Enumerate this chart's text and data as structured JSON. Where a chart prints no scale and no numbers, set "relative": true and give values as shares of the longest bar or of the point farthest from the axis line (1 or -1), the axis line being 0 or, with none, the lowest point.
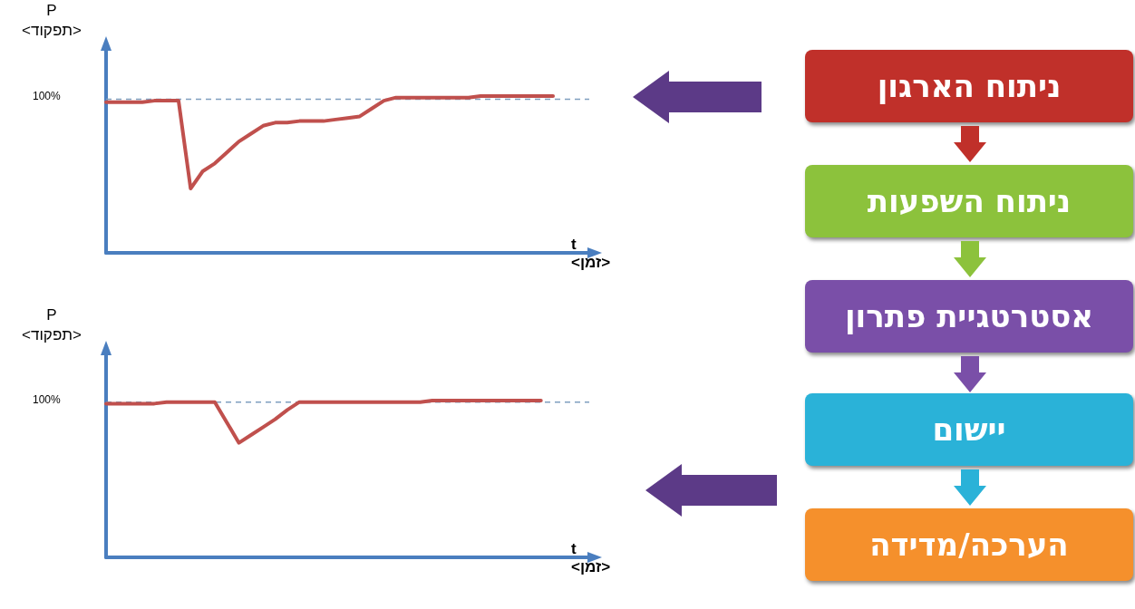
{
  "chart_data": [
    {
      "type": "line",
      "ylabel": "P <תפקוד>",
      "xlabel": "t <זמן>",
      "relative": true,
      "tick_labels": false,
      "line_style": "solid",
      "annotations": [
        "100%"
      ],
      "categories": [
        null,
        null,
        null,
        null,
        null,
        null,
        null,
        null,
        null,
        null,
        null,
        null,
        null,
        null,
        null,
        null,
        null,
        null,
        null,
        null,
        null,
        null,
        null,
        null,
        null,
        null,
        null,
        null,
        null,
        null,
        null,
        null,
        null,
        null,
        null,
        null,
        null,
        null,
        null,
        null,
        null
      ],
      "series": [
        {
          "color": "#c0504d",
          "values": [
            0.96,
            0.96,
            0.96,
            0.96,
            0.97,
            0.97,
            0.97,
            0.41,
            0.52,
            0.57,
            0.64,
            0.71,
            0.76,
            0.81,
            0.83,
            0.83,
            0.84,
            0.84,
            0.84,
            0.85,
            0.86,
            0.87,
            0.92,
            0.97,
            0.99,
            0.99,
            0.99,
            0.99,
            0.99,
            0.99,
            0.99,
            1,
            1,
            1,
            1,
            1,
            1,
            1,
            null,
            null,
            null
          ]
        }
      ],
      "ref_lines": [
        {
          "axis": "y",
          "value": 0.98,
          "color": "#7f9fbf",
          "line_style": "dashed"
        }
      ]
    },
    {
      "type": "line",
      "ylabel": "P <תפקוד>",
      "xlabel": "t <זמן>",
      "relative": true,
      "tick_labels": false,
      "line_style": "solid",
      "annotations": [
        "100%"
      ],
      "categories": [
        null,
        null,
        null,
        null,
        null,
        null,
        null,
        null,
        null,
        null,
        null,
        null,
        null,
        null,
        null,
        null,
        null,
        null,
        null,
        null,
        null,
        null,
        null,
        null,
        null,
        null,
        null,
        null,
        null,
        null,
        null,
        null,
        null,
        null,
        null,
        null,
        null,
        null,
        null,
        null,
        null
      ],
      "series": [
        {
          "color": "#c0504d",
          "values": [
            0.98,
            0.98,
            0.98,
            0.98,
            0.98,
            0.99,
            0.99,
            0.99,
            0.99,
            0.99,
            0.86,
            0.73,
            0.78,
            0.83,
            0.88,
            0.94,
            0.99,
            0.99,
            0.99,
            0.99,
            0.99,
            0.99,
            0.99,
            0.99,
            0.99,
            0.99,
            0.99,
            1,
            1,
            1,
            1,
            1,
            1,
            1,
            1,
            1,
            1,
            null,
            null,
            null,
            null
          ]
        }
      ],
      "ref_lines": [
        {
          "axis": "y",
          "value": 0.99,
          "color": "#7f9fbf",
          "line_style": "dashed"
        }
      ]
    },
    {
      "type": "other",
      "annotations": [
        "ניתוח הארגון",
        "ניתוח השפעות",
        "אסטרטגיית פתרון",
        "יישום",
        "הערכה/מדידה"
      ],
      "colors": [
        "#c0302a",
        "#8cc23c",
        "#7a4fa8",
        "#2ab2d8",
        "#f5902c"
      ]
    }
  ]
}
